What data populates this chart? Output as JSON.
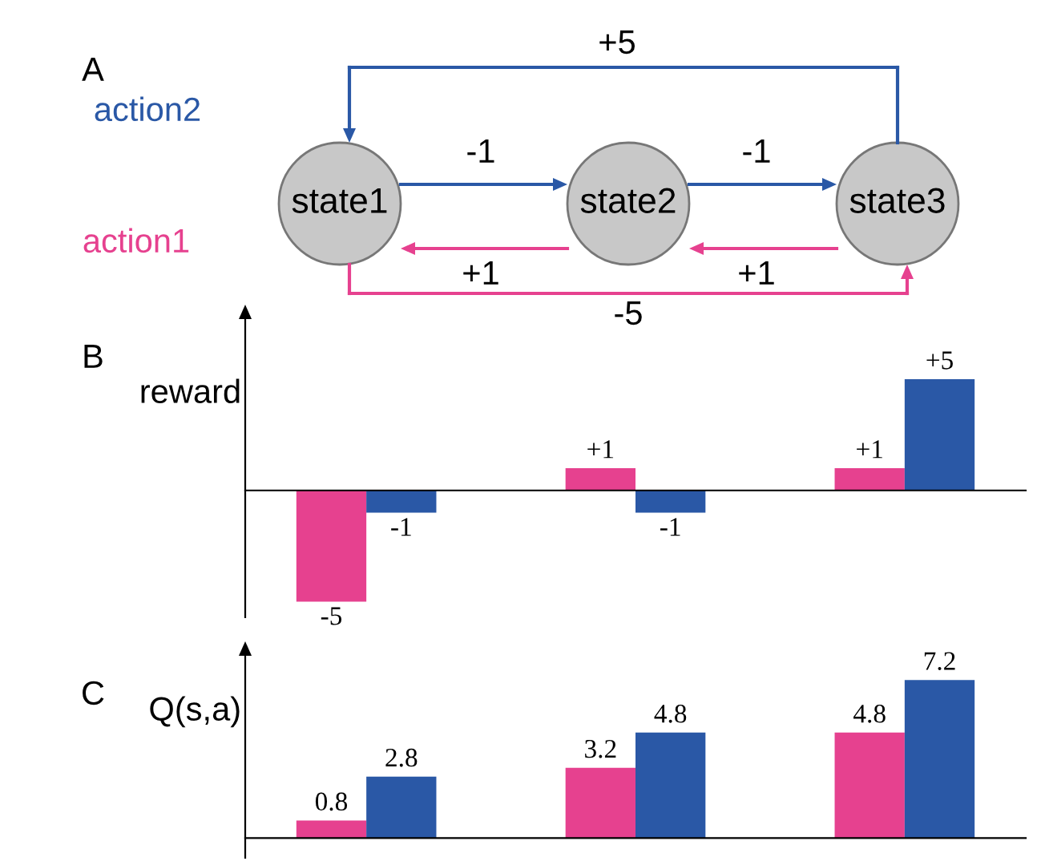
{
  "chart_data": [
    {
      "type": "other",
      "title": "A",
      "annotations": [
        "action2",
        "action1",
        "state1",
        "state2",
        "state3",
        "+5",
        "-1",
        "-1",
        "+1",
        "+1",
        "-5"
      ]
    },
    {
      "type": "bar",
      "title": "B",
      "ylabel": "reward",
      "categories": [
        null,
        null,
        null
      ],
      "series": [
        {
          "color": "#e6418f",
          "values": [
            -5,
            1,
            1
          ],
          "value_labels": [
            "-5",
            "+1",
            "+1"
          ]
        },
        {
          "color": "#2a58a6",
          "values": [
            -1,
            -1,
            5
          ],
          "value_labels": [
            "-1",
            "-1",
            "+5"
          ]
        }
      ],
      "ylim": [
        -5.7,
        7.7
      ],
      "grid": false,
      "legend": false
    },
    {
      "type": "bar",
      "title": "C",
      "ylabel": "Q(s,a)",
      "categories": [
        null,
        null,
        null
      ],
      "series": [
        {
          "color": "#e6418f",
          "values": [
            0.8,
            3.2,
            4.8
          ]
        },
        {
          "color": "#2a58a6",
          "values": [
            2.8,
            4.8,
            7.2
          ]
        }
      ],
      "ylim": [
        -0.9,
        8.3
      ],
      "data_labels": true,
      "grid": false,
      "legend": false
    }
  ]
}
